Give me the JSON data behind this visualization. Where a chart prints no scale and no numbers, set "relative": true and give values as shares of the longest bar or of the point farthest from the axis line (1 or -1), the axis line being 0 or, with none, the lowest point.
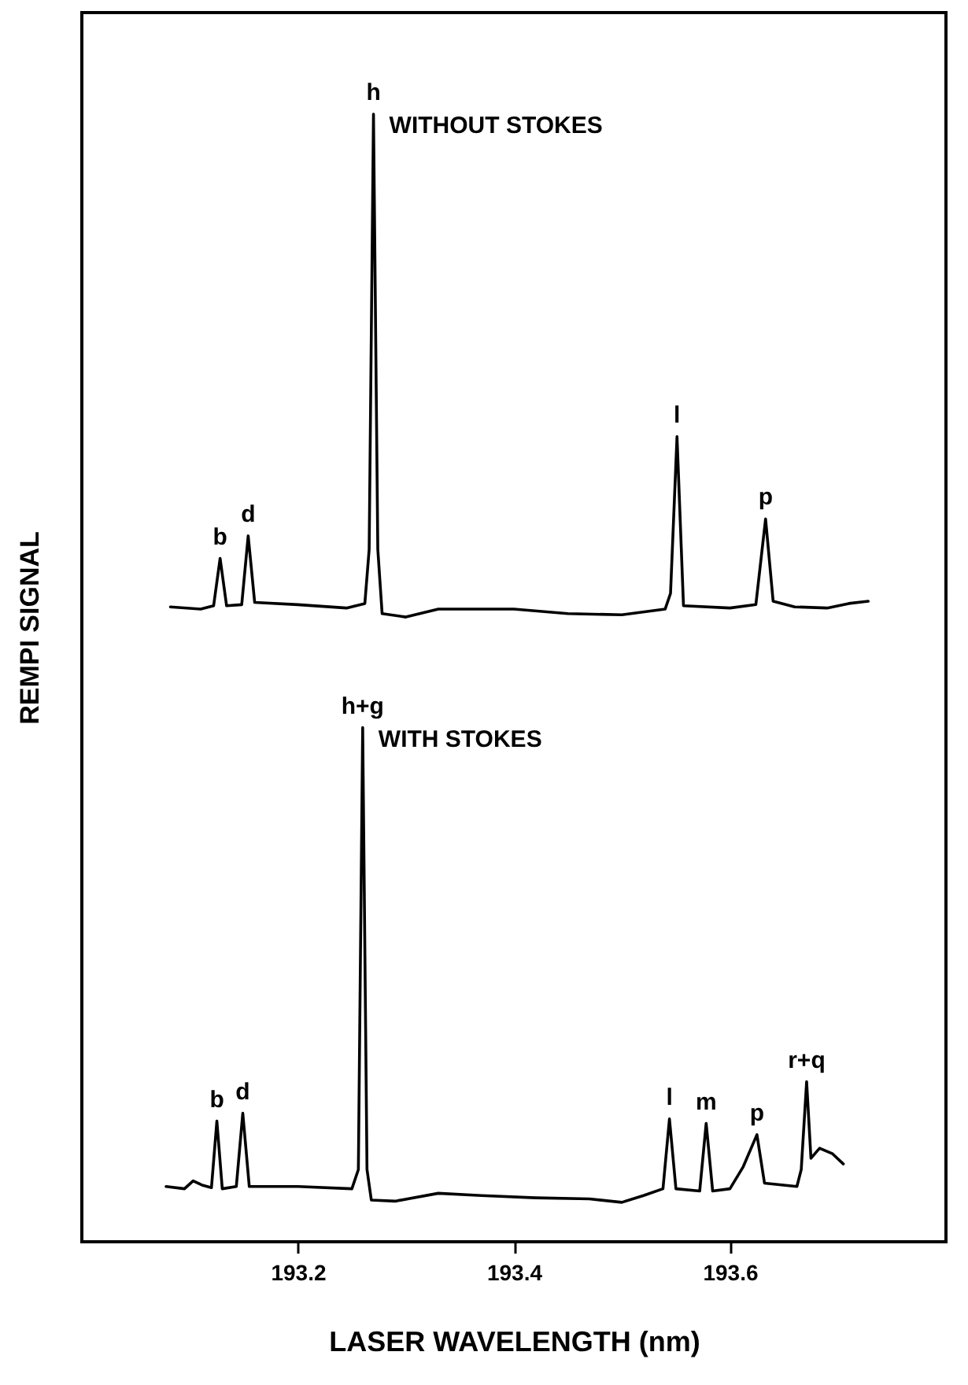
{
  "chart_data": {
    "type": "line",
    "relative": true,
    "xlabel": "LASER WAVELENGTH   (nm)",
    "ylabel": "REMPI SIGNAL",
    "xlim": [
      193.0,
      193.8
    ],
    "xticks": [
      193.2,
      193.4,
      193.6
    ],
    "grid": false,
    "legend": false,
    "marker": "none",
    "line_style": "solid",
    "series": [
      {
        "name": "WITHOUT STOKES",
        "color": "#000000",
        "x": [
          193.082,
          193.11,
          193.122,
          193.128,
          193.134,
          193.148,
          193.154,
          193.16,
          193.2,
          193.245,
          193.262,
          193.266,
          193.27,
          193.274,
          193.278,
          193.3,
          193.33,
          193.4,
          193.45,
          193.5,
          193.54,
          193.545,
          193.551,
          193.557,
          193.6,
          193.624,
          193.633,
          193.64,
          193.66,
          193.69,
          193.71,
          193.728
        ],
        "values": [
          0.563,
          0.561,
          0.564,
          0.606,
          0.564,
          0.565,
          0.626,
          0.567,
          0.565,
          0.562,
          0.566,
          0.614,
          1.0,
          0.614,
          0.557,
          0.554,
          0.561,
          0.561,
          0.557,
          0.556,
          0.561,
          0.575,
          0.714,
          0.564,
          0.562,
          0.565,
          0.641,
          0.568,
          0.563,
          0.562,
          0.566,
          0.568
        ]
      },
      {
        "name": "WITH STOKES",
        "color": "#000000",
        "x": [
          193.078,
          193.095,
          193.103,
          193.112,
          193.12,
          193.125,
          193.13,
          193.143,
          193.149,
          193.155,
          193.2,
          193.25,
          193.256,
          193.26,
          193.264,
          193.268,
          193.29,
          193.33,
          193.37,
          193.42,
          193.47,
          193.5,
          193.52,
          193.538,
          193.544,
          193.55,
          193.572,
          193.578,
          193.584,
          193.6,
          193.612,
          193.625,
          193.632,
          193.662,
          193.666,
          193.671,
          193.675,
          193.683,
          193.695,
          193.705
        ],
        "values": [
          0.049,
          0.047,
          0.054,
          0.05,
          0.048,
          0.107,
          0.047,
          0.049,
          0.114,
          0.049,
          0.049,
          0.047,
          0.064,
          0.456,
          0.064,
          0.037,
          0.036,
          0.043,
          0.041,
          0.039,
          0.038,
          0.035,
          0.041,
          0.047,
          0.109,
          0.047,
          0.045,
          0.105,
          0.045,
          0.047,
          0.066,
          0.095,
          0.052,
          0.049,
          0.064,
          0.142,
          0.074,
          0.083,
          0.078,
          0.069
        ]
      }
    ],
    "annotations": [
      {
        "text": "h",
        "x": 193.27,
        "y": 1.0
      },
      {
        "text": "b",
        "x": 193.128,
        "y": 0.606
      },
      {
        "text": "d",
        "x": 193.154,
        "y": 0.626
      },
      {
        "text": "l",
        "x": 193.551,
        "y": 0.714
      },
      {
        "text": "p",
        "x": 193.633,
        "y": 0.641
      },
      {
        "text": "h+g",
        "x": 193.26,
        "y": 0.456
      },
      {
        "text": "b",
        "x": 193.125,
        "y": 0.107
      },
      {
        "text": "d",
        "x": 193.149,
        "y": 0.114
      },
      {
        "text": "l",
        "x": 193.544,
        "y": 0.109
      },
      {
        "text": "m",
        "x": 193.578,
        "y": 0.105
      },
      {
        "text": "p",
        "x": 193.625,
        "y": 0.095
      },
      {
        "text": "r+q",
        "x": 193.671,
        "y": 0.142
      }
    ]
  }
}
